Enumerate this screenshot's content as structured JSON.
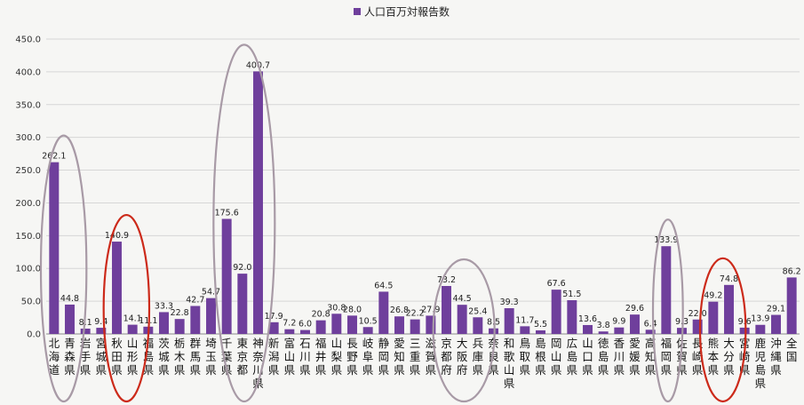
{
  "chart_data": {
    "type": "bar",
    "legend": {
      "label": "人口百万対報告数",
      "position": "top-center"
    },
    "ylim": [
      0,
      450
    ],
    "yticks": [
      "0.0",
      "50.0",
      "100.0",
      "150.0",
      "200.0",
      "250.0",
      "300.0",
      "350.0",
      "400.0",
      "450.0"
    ],
    "grid": true,
    "series": [
      {
        "name": "人口百万対報告数",
        "color": "#6f3f9c",
        "values": [
          262.1,
          44.8,
          8.1,
          9.4,
          140.9,
          14.1,
          11.1,
          33.3,
          22.8,
          42.7,
          54.7,
          175.6,
          92.0,
          400.7,
          17.9,
          7.2,
          6.0,
          20.8,
          30.8,
          28.0,
          10.5,
          64.5,
          26.8,
          22.2,
          27.9,
          73.2,
          44.5,
          25.4,
          8.5,
          39.3,
          11.7,
          5.5,
          67.6,
          51.5,
          13.6,
          3.8,
          9.9,
          29.6,
          6.4,
          133.9,
          9.3,
          22.0,
          49.2,
          74.8,
          9.6,
          13.9,
          29.1,
          86.2
        ],
        "labels": [
          "262.1",
          "44.8",
          "8.1",
          "9.4",
          "140.9",
          "14.1",
          "11.1",
          "33.3",
          "22.8",
          "42.7",
          "54.7",
          "175.6",
          "92.0",
          "400.7",
          "17.9",
          "7.2",
          "6.0",
          "20.8",
          "30.8",
          "28.0",
          "10.5",
          "64.5",
          "26.8",
          "22.2",
          "27.9",
          "73.2",
          "44.5",
          "25.4",
          "8.5",
          "39.3",
          "11.7",
          "5.5",
          "67.6",
          "51.5",
          "13.6",
          "3.8",
          "9.9",
          "29.6",
          "6.4",
          "133.9",
          "9.3",
          "22.0",
          "49.2",
          "74.8",
          "9.6",
          "13.9",
          "29.1",
          "86.2"
        ]
      }
    ],
    "categories": [
      "北海道",
      "青森県",
      "岩手県",
      "宮城県",
      "秋田県",
      "山形県",
      "福島県",
      "茨城県",
      "栃木県",
      "群馬県",
      "埼玉県",
      "千葉県",
      "東京都",
      "神奈川県",
      "新潟県",
      "富山県",
      "石川県",
      "福井県",
      "山梨県",
      "長野県",
      "岐阜県",
      "静岡県",
      "愛知県",
      "三重県",
      "滋賀県",
      "京都府",
      "大阪府",
      "兵庫県",
      "奈良県",
      "和歌山県",
      "鳥取県",
      "島根県",
      "岡山県",
      "広島県",
      "山口県",
      "徳島県",
      "香川県",
      "愛媛県",
      "高知県",
      "福岡県",
      "佐賀県",
      "長崎県",
      "熊本県",
      "大分県",
      "宮崎県",
      "鹿児島県",
      "沖縄県",
      "全国"
    ],
    "highlights": [
      {
        "start": 0,
        "end": 1,
        "color": "#a89aa6"
      },
      {
        "start": 4,
        "end": 5,
        "color": "#cc2a1a"
      },
      {
        "start": 11,
        "end": 13,
        "color": "#a89aa6"
      },
      {
        "start": 25,
        "end": 27,
        "color": "#a89aa6"
      },
      {
        "start": 39,
        "end": 39,
        "color": "#a89aa6"
      },
      {
        "start": 42,
        "end": 43,
        "color": "#cc2a1a"
      }
    ]
  }
}
